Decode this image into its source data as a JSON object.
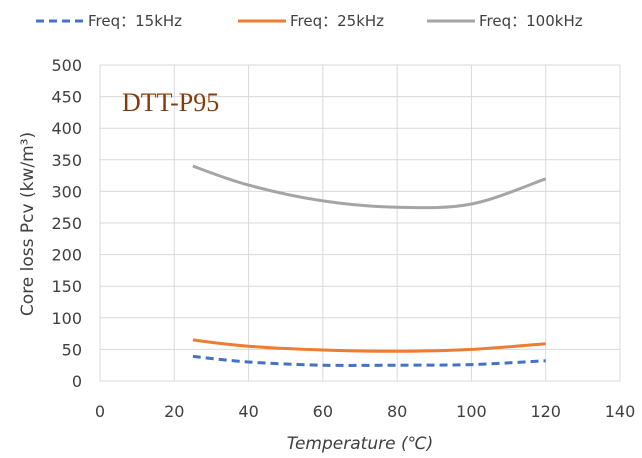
{
  "chart_data": {
    "type": "line",
    "xlabel": "Temperature (℃)",
    "ylabel": "Core loss Pcv (kw/m³)",
    "xlim": [
      0,
      140
    ],
    "ylim": [
      0,
      500
    ],
    "x_ticks": [
      "0",
      "20",
      "40",
      "60",
      "80",
      "100",
      "120",
      "140"
    ],
    "y_ticks": [
      "0",
      "50",
      "100",
      "150",
      "200",
      "250",
      "300",
      "350",
      "400",
      "450",
      "500"
    ],
    "grid": true,
    "legend_position": "top",
    "annotation": "DTT-P95",
    "series": [
      {
        "name": "Freq：15kHz",
        "color": "#4472C4",
        "dash": "dashed",
        "x": [
          25,
          40,
          60,
          80,
          100,
          120
        ],
        "y": [
          39,
          30,
          25,
          25,
          26,
          32
        ]
      },
      {
        "name": "Freq：25kHz",
        "color": "#ED7D31",
        "dash": "solid",
        "x": [
          25,
          40,
          60,
          80,
          100,
          120
        ],
        "y": [
          65,
          55,
          49,
          47,
          50,
          59
        ]
      },
      {
        "name": "Freq：100kHz",
        "color": "#A5A5A5",
        "dash": "solid",
        "x": [
          25,
          40,
          60,
          80,
          100,
          120
        ],
        "y": [
          340,
          310,
          285,
          275,
          280,
          320
        ]
      }
    ]
  }
}
